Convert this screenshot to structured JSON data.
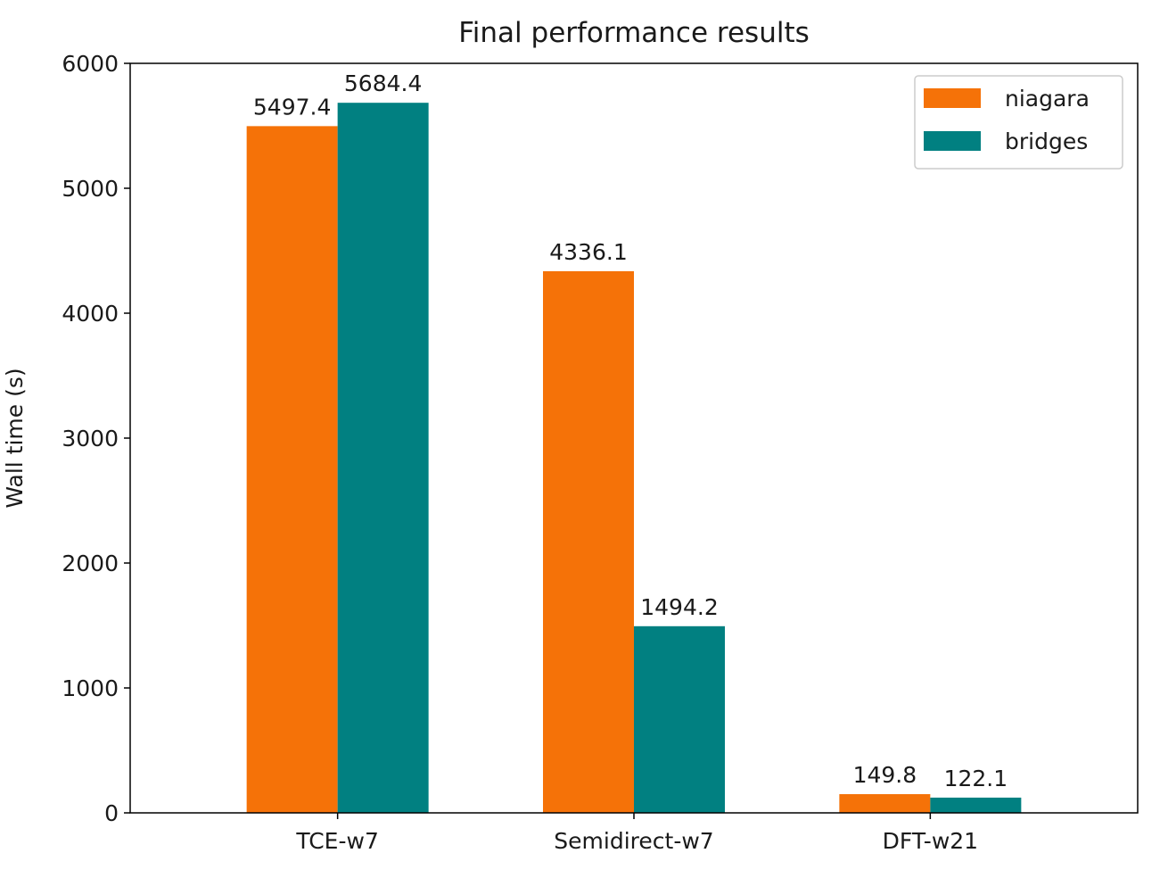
{
  "chart_data": {
    "type": "bar",
    "title": "Final performance results",
    "xlabel": "",
    "ylabel": "Wall time (s)",
    "categories": [
      "TCE-w7",
      "Semidirect-w7",
      "DFT-w21"
    ],
    "series": [
      {
        "name": "niagara",
        "color": "#f57208",
        "values": [
          5497.4,
          4336.1,
          149.8
        ],
        "labels": [
          "5497.4",
          "4336.1",
          "149.8"
        ]
      },
      {
        "name": "bridges",
        "color": "#018081",
        "values": [
          5684.4,
          1494.2,
          122.1
        ],
        "labels": [
          "5684.4",
          "1494.2",
          "122.1"
        ]
      }
    ],
    "ylim": [
      0,
      6000
    ],
    "yticks": [
      0,
      1000,
      2000,
      3000,
      4000,
      5000,
      6000
    ],
    "ytick_labels": [
      "0",
      "1000",
      "2000",
      "3000",
      "4000",
      "5000",
      "6000"
    ],
    "grid": false,
    "legend_position": "top-right"
  }
}
